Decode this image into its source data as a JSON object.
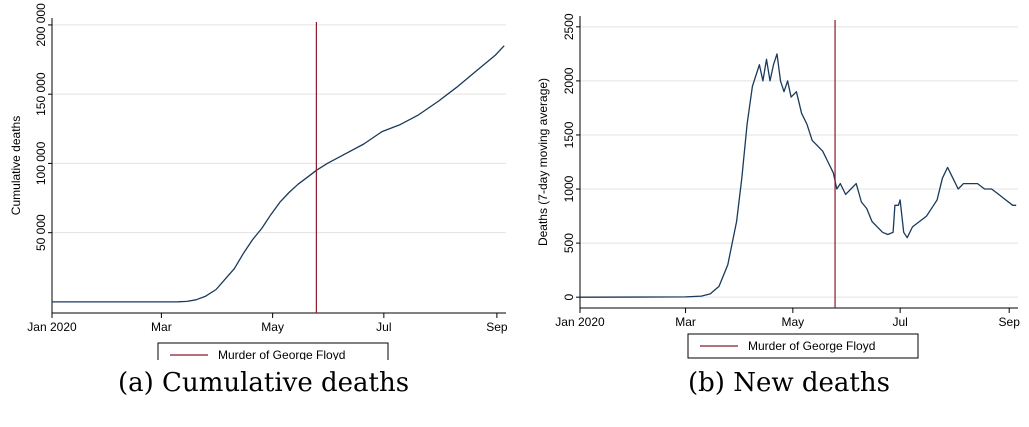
{
  "colors": {
    "series": "#1a3a5c",
    "vline": "#8b1a2b",
    "grid": "#e3e3e3",
    "axis": "#000000"
  },
  "charts": [
    {
      "caption": "(a) Cumulative deaths",
      "chart_data": {
        "type": "line",
        "ylabel": "Cumulative deaths",
        "xlabel": "",
        "xlim": [
          "2020-01-01",
          "2020-09-06"
        ],
        "ylim": [
          -8000,
          205000
        ],
        "grid": true,
        "x_ticks": [
          {
            "date": "2020-01-01",
            "label": "Jan 2020"
          },
          {
            "date": "2020-03-01",
            "label": "Mar"
          },
          {
            "date": "2020-05-01",
            "label": "May"
          },
          {
            "date": "2020-07-01",
            "label": "Jul"
          },
          {
            "date": "2020-09-01",
            "label": "Sep"
          }
        ],
        "y_ticks": [
          {
            "value": 50000,
            "label": "50 000"
          },
          {
            "value": 100000,
            "label": "100 000"
          },
          {
            "value": 150000,
            "label": "150 000"
          },
          {
            "value": 200000,
            "label": "200 000"
          }
        ],
        "vline": {
          "date": "2020-05-25",
          "label": "Murder of George Floyd"
        },
        "legend": {
          "placement": "bottom",
          "entries": [
            "Murder of George Floyd"
          ]
        },
        "series": [
          {
            "x": [
              "2020-01-01",
              "2020-03-01",
              "2020-03-10",
              "2020-03-15",
              "2020-03-20",
              "2020-03-25",
              "2020-03-31",
              "2020-04-05",
              "2020-04-10",
              "2020-04-15",
              "2020-04-20",
              "2020-04-25",
              "2020-04-30",
              "2020-05-05",
              "2020-05-10",
              "2020-05-15",
              "2020-05-20",
              "2020-05-25",
              "2020-05-31",
              "2020-06-10",
              "2020-06-20",
              "2020-06-30",
              "2020-07-10",
              "2020-07-20",
              "2020-07-31",
              "2020-08-10",
              "2020-08-20",
              "2020-08-31",
              "2020-09-05"
            ],
            "values": [
              0,
              30,
              100,
              400,
              1500,
              4000,
              9000,
              16500,
              24000,
              35000,
              45000,
              53000,
              63000,
              72000,
              79000,
              85000,
              90000,
              95000,
              100000,
              107000,
              114000,
              123000,
              128000,
              135000,
              145000,
              155000,
              166000,
              178000,
              185000
            ]
          }
        ]
      }
    },
    {
      "caption": "(b) New deaths",
      "chart_data": {
        "type": "line",
        "ylabel": "Deaths (7-day moving average)",
        "xlabel": "",
        "xlim": [
          "2020-01-01",
          "2020-09-06"
        ],
        "ylim": [
          -100,
          2600
        ],
        "grid": true,
        "x_ticks": [
          {
            "date": "2020-01-01",
            "label": "Jan 2020"
          },
          {
            "date": "2020-03-01",
            "label": "Mar"
          },
          {
            "date": "2020-05-01",
            "label": "May"
          },
          {
            "date": "2020-07-01",
            "label": "Jul"
          },
          {
            "date": "2020-09-01",
            "label": "Sep"
          }
        ],
        "y_ticks": [
          {
            "value": 0,
            "label": "0"
          },
          {
            "value": 500,
            "label": "500"
          },
          {
            "value": 1000,
            "label": "1000"
          },
          {
            "value": 1500,
            "label": "1500"
          },
          {
            "value": 2000,
            "label": "2000"
          },
          {
            "value": 2500,
            "label": "2500"
          }
        ],
        "vline": {
          "date": "2020-05-25",
          "label": "Murder of George Floyd"
        },
        "legend": {
          "placement": "bottom",
          "entries": [
            "Murder of George Floyd"
          ]
        },
        "series": [
          {
            "x": [
              "2020-01-01",
              "2020-03-01",
              "2020-03-10",
              "2020-03-15",
              "2020-03-20",
              "2020-03-25",
              "2020-03-30",
              "2020-04-02",
              "2020-04-05",
              "2020-04-08",
              "2020-04-10",
              "2020-04-12",
              "2020-04-14",
              "2020-04-16",
              "2020-04-18",
              "2020-04-20",
              "2020-04-22",
              "2020-04-24",
              "2020-04-26",
              "2020-04-28",
              "2020-04-30",
              "2020-05-03",
              "2020-05-06",
              "2020-05-09",
              "2020-05-12",
              "2020-05-15",
              "2020-05-18",
              "2020-05-21",
              "2020-05-24",
              "2020-05-26",
              "2020-05-28",
              "2020-05-31",
              "2020-06-03",
              "2020-06-06",
              "2020-06-09",
              "2020-06-12",
              "2020-06-15",
              "2020-06-18",
              "2020-06-21",
              "2020-06-24",
              "2020-06-27",
              "2020-06-28",
              "2020-06-30",
              "2020-07-01",
              "2020-07-03",
              "2020-07-05",
              "2020-07-08",
              "2020-07-12",
              "2020-07-16",
              "2020-07-20",
              "2020-07-22",
              "2020-07-25",
              "2020-07-28",
              "2020-07-31",
              "2020-08-03",
              "2020-08-06",
              "2020-08-10",
              "2020-08-14",
              "2020-08-18",
              "2020-08-22",
              "2020-08-26",
              "2020-08-30",
              "2020-09-03",
              "2020-09-05"
            ],
            "values": [
              0,
              3,
              10,
              30,
              100,
              300,
              700,
              1100,
              1600,
              1950,
              2050,
              2150,
              2000,
              2200,
              2000,
              2150,
              2250,
              2000,
              1900,
              2000,
              1850,
              1900,
              1700,
              1600,
              1450,
              1400,
              1350,
              1250,
              1150,
              1000,
              1050,
              950,
              1000,
              1050,
              880,
              820,
              700,
              650,
              600,
              580,
              600,
              850,
              850,
              900,
              600,
              550,
              650,
              700,
              750,
              850,
              900,
              1100,
              1200,
              1100,
              1000,
              1050,
              1050,
              1050,
              1000,
              1000,
              950,
              900,
              850,
              850
            ]
          }
        ]
      }
    }
  ]
}
